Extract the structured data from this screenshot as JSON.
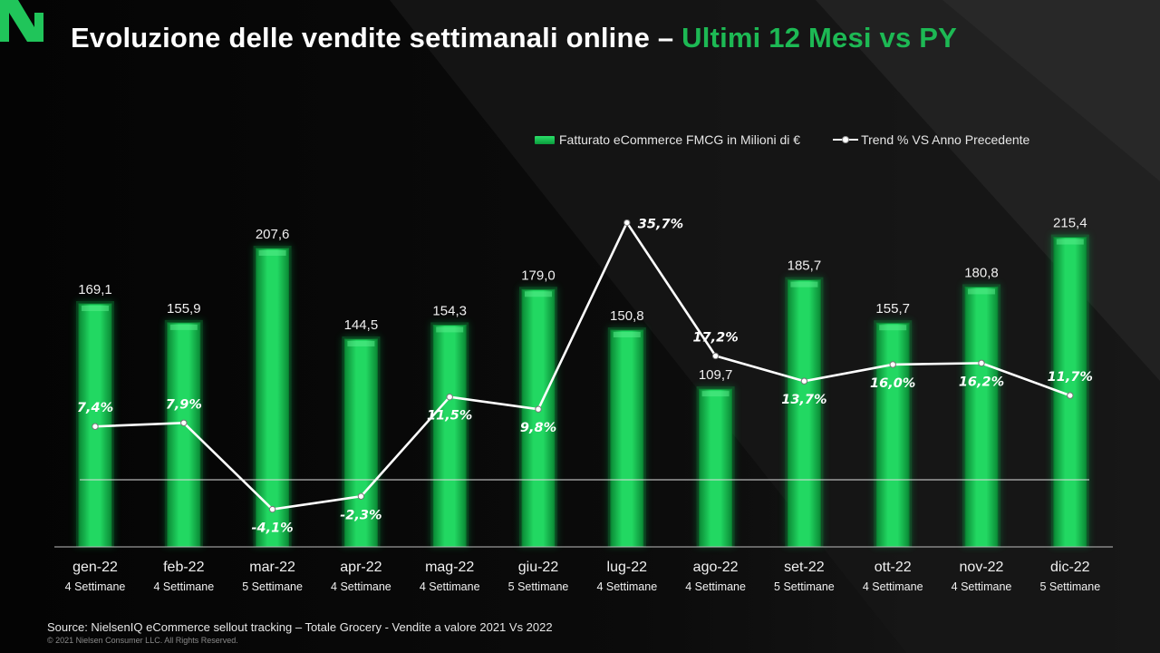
{
  "header": {
    "title": "Evoluzione delle vendite settimanali online – ",
    "title_accent": "Ultimi 12 Mesi vs PY"
  },
  "legend": {
    "bar_label": "Fatturato eCommerce FMCG in Milioni di €",
    "line_label": "Trend % VS Anno Precedente"
  },
  "footer": {
    "source": "Source:  NielsenIQ eCommerce  sellout tracking – Totale Grocery - Vendite a valore 2021 Vs 2022",
    "copyright": "© 2021 Nielsen Consumer LLC. All Rights Reserved."
  },
  "colors": {
    "accent": "#1db954",
    "bar": "#1fd45e",
    "line": "#ffffff",
    "background": "#050505"
  },
  "icons": {
    "logo": "nielseniq-logo"
  },
  "chart_data": {
    "type": "bar",
    "categories": [
      "gen-22",
      "feb-22",
      "mar-22",
      "apr-22",
      "mag-22",
      "giu-22",
      "lug-22",
      "ago-22",
      "set-22",
      "ott-22",
      "nov-22",
      "dic-22"
    ],
    "subcategories": [
      "4 Settimane",
      "4 Settimane",
      "5 Settimane",
      "4 Settimane",
      "4 Settimane",
      "5 Settimane",
      "4 Settimane",
      "4 Settimane",
      "5 Settimane",
      "4 Settimane",
      "4 Settimane",
      "5 Settimane"
    ],
    "series": [
      {
        "name": "Fatturato eCommerce FMCG in Milioni di €",
        "type": "bar",
        "values": [
          169.1,
          155.9,
          207.6,
          144.5,
          154.3,
          179.0,
          150.8,
          109.7,
          185.7,
          155.7,
          180.8,
          215.4
        ],
        "labels": [
          "169,1",
          "155,9",
          "207,6",
          "144,5",
          "154,3",
          "179,0",
          "150,8",
          "109,7",
          "185,7",
          "155,7",
          "180,8",
          "215,4"
        ]
      },
      {
        "name": "Trend % VS Anno Precedente",
        "type": "line",
        "values": [
          7.4,
          7.9,
          -4.1,
          -2.3,
          11.5,
          9.8,
          35.7,
          17.2,
          13.7,
          16.0,
          16.2,
          11.7
        ],
        "labels": [
          "7,4%",
          "7,9%",
          "-4,1%",
          "-2,3%",
          "11,5%",
          "9,8%",
          "35,7%",
          "17,2%",
          "13,7%",
          "16,0%",
          "16,2%",
          "11,7%"
        ],
        "label_positions": [
          "above",
          "above",
          "below",
          "below",
          "below",
          "below",
          "right",
          "above",
          "below",
          "below",
          "below",
          "above"
        ]
      }
    ],
    "xlabel": "",
    "ylabel": "",
    "legend_position": "top-right",
    "grid": false
  }
}
